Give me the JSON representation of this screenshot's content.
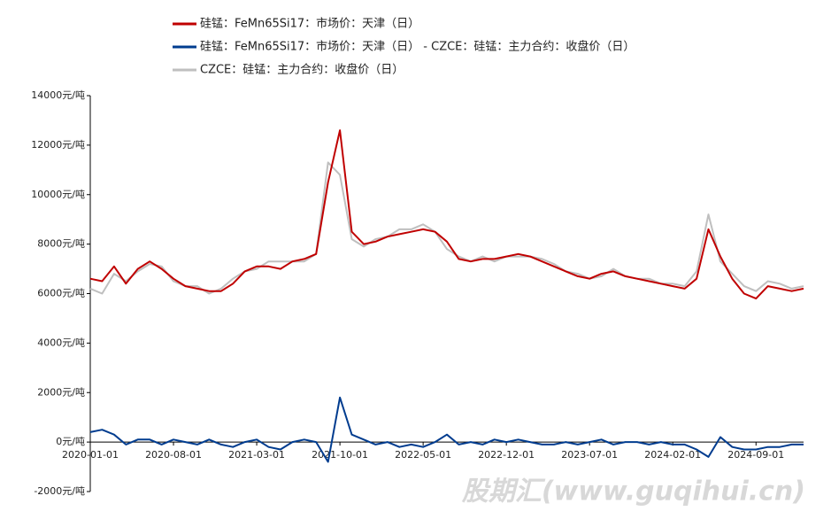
{
  "chart_data": {
    "type": "line",
    "x": [
      "2020-01-01",
      "2020-02-01",
      "2020-03-01",
      "2020-04-01",
      "2020-05-01",
      "2020-06-01",
      "2020-07-01",
      "2020-08-01",
      "2020-09-01",
      "2020-10-01",
      "2020-11-01",
      "2020-12-01",
      "2021-01-01",
      "2021-02-01",
      "2021-03-01",
      "2021-04-01",
      "2021-05-01",
      "2021-06-01",
      "2021-07-01",
      "2021-08-01",
      "2021-09-01",
      "2021-10-01",
      "2021-11-01",
      "2021-12-01",
      "2022-01-01",
      "2022-02-01",
      "2022-03-01",
      "2022-04-01",
      "2022-05-01",
      "2022-06-01",
      "2022-07-01",
      "2022-08-01",
      "2022-09-01",
      "2022-10-01",
      "2022-11-01",
      "2022-12-01",
      "2023-01-01",
      "2023-02-01",
      "2023-03-01",
      "2023-04-01",
      "2023-05-01",
      "2023-06-01",
      "2023-07-01",
      "2023-08-01",
      "2023-09-01",
      "2023-10-01",
      "2023-11-01",
      "2023-12-01",
      "2024-01-01",
      "2024-02-01",
      "2024-03-01",
      "2024-04-01",
      "2024-05-01",
      "2024-06-01",
      "2024-07-01",
      "2024-08-01",
      "2024-09-01",
      "2024-10-01",
      "2024-11-01",
      "2024-12-01",
      "2025-01-01"
    ],
    "series": [
      {
        "name": "硅锰：FeMn65Si17：市场价：天津（日）",
        "color": "#c00000",
        "values": [
          6600,
          6500,
          7100,
          6400,
          7000,
          7300,
          7000,
          6600,
          6300,
          6200,
          6100,
          6100,
          6400,
          6900,
          7100,
          7100,
          7000,
          7300,
          7400,
          7600,
          10500,
          12600,
          8500,
          8000,
          8100,
          8300,
          8400,
          8500,
          8600,
          8500,
          8100,
          7400,
          7300,
          7400,
          7400,
          7500,
          7600,
          7500,
          7300,
          7100,
          6900,
          6700,
          6600,
          6800,
          6900,
          6700,
          6600,
          6500,
          6400,
          6300,
          6200,
          6600,
          8600,
          7500,
          6600,
          6000,
          5800,
          6300,
          6200,
          6100,
          6200
        ]
      },
      {
        "name": "硅锰：FeMn65Si17：市场价：天津（日） - CZCE：硅锰：主力合约：收盘价（日）",
        "color": "#003c8f",
        "values": [
          400,
          500,
          300,
          -100,
          100,
          100,
          -100,
          100,
          0,
          -100,
          100,
          -100,
          -200,
          0,
          100,
          -200,
          -300,
          0,
          100,
          0,
          -800,
          1800,
          300,
          100,
          -100,
          0,
          -200,
          -100,
          -200,
          0,
          300,
          -100,
          0,
          -100,
          100,
          0,
          100,
          0,
          -100,
          -100,
          0,
          -100,
          0,
          100,
          -100,
          0,
          0,
          -100,
          0,
          -100,
          -100,
          -300,
          -600,
          200,
          -200,
          -300,
          -300,
          -200,
          -200,
          -100,
          -100
        ]
      },
      {
        "name": "CZCE：硅锰：主力合约：收盘价（日）",
        "color": "#bfbfbf",
        "values": [
          6200,
          6000,
          6800,
          6500,
          6900,
          7200,
          7100,
          6500,
          6300,
          6300,
          6000,
          6200,
          6600,
          6900,
          7000,
          7300,
          7300,
          7300,
          7300,
          7600,
          11300,
          10800,
          8200,
          7900,
          8200,
          8300,
          8600,
          8600,
          8800,
          8500,
          7800,
          7500,
          7300,
          7500,
          7300,
          7500,
          7500,
          7500,
          7400,
          7200,
          6900,
          6800,
          6600,
          6700,
          7000,
          6700,
          6600,
          6600,
          6400,
          6400,
          6300,
          6900,
          9200,
          7300,
          6800,
          6300,
          6100,
          6500,
          6400,
          6200,
          6300
        ]
      }
    ],
    "ylim": [
      -2000,
      14000
    ],
    "yticks": [
      {
        "value": -2000,
        "label": "-2000元/吨"
      },
      {
        "value": 0,
        "label": "0元/吨"
      },
      {
        "value": 2000,
        "label": "2000元/吨"
      },
      {
        "value": 4000,
        "label": "4000元/吨"
      },
      {
        "value": 6000,
        "label": "6000元/吨"
      },
      {
        "value": 8000,
        "label": "8000元/吨"
      },
      {
        "value": 10000,
        "label": "10000元/吨"
      },
      {
        "value": 12000,
        "label": "12000元/吨"
      },
      {
        "value": 14000,
        "label": "14000元/吨"
      }
    ],
    "xticks": [
      "2020-01-01",
      "2020-08-01",
      "2021-03-01",
      "2021-10-01",
      "2022-05-01",
      "2022-12-01",
      "2023-07-01",
      "2024-02-01",
      "2024-09-01"
    ],
    "watermark": "股期汇(www.guqihui.cn)"
  }
}
